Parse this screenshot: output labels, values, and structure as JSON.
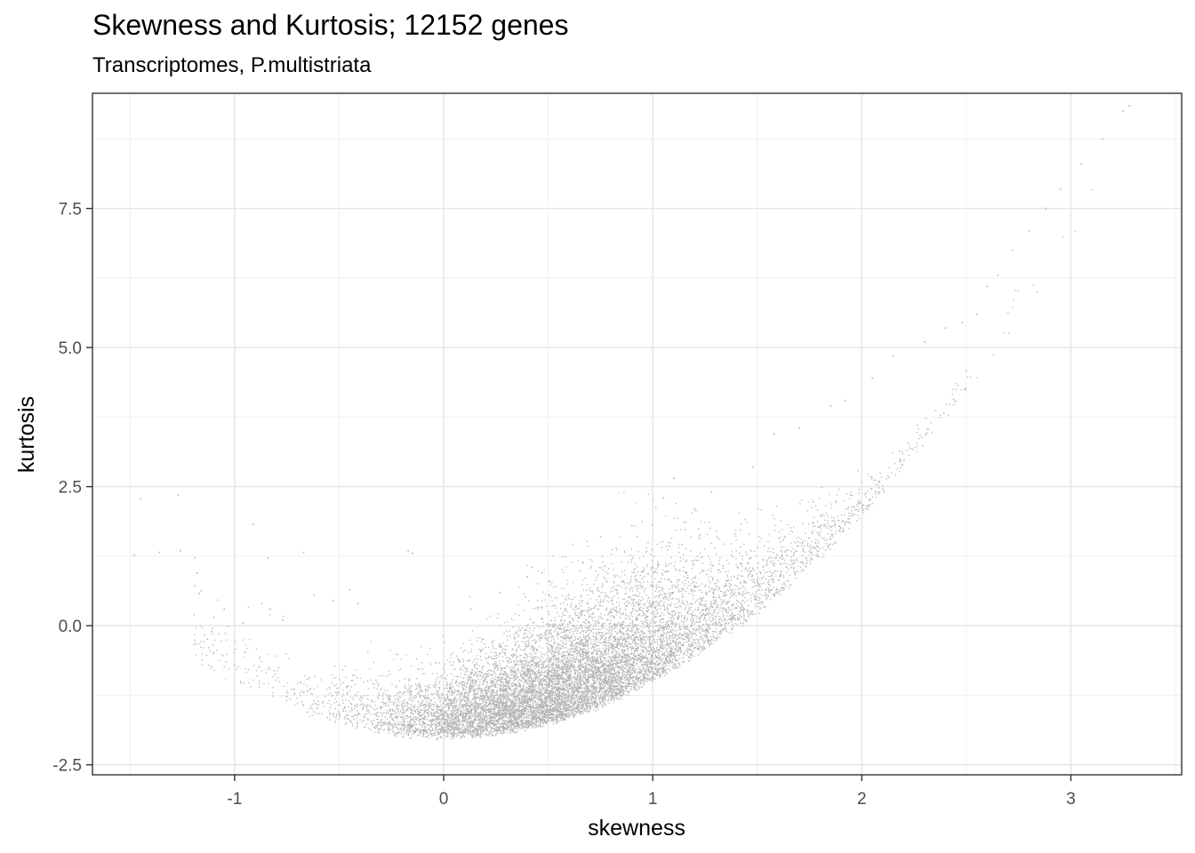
{
  "chart_data": {
    "type": "scatter",
    "title": "Skewness and Kurtosis; 12152 genes",
    "subtitle": "Transcriptomes, P.multistriata",
    "xlabel": "skewness",
    "ylabel": "kurtosis",
    "xlim": [
      -1.68,
      3.53
    ],
    "ylim": [
      -2.68,
      9.57
    ],
    "x_ticks": [
      -1,
      0,
      1,
      2,
      3
    ],
    "x_tick_labels": [
      "-1",
      "0",
      "1",
      "2",
      "3"
    ],
    "y_ticks": [
      -2.5,
      0,
      2.5,
      5,
      7.5
    ],
    "y_tick_labels": [
      "-2.5",
      "0.0",
      "2.5",
      "5.0",
      "7.5"
    ],
    "grid": true,
    "point_color": "#b3b3b3",
    "n_points": 12152,
    "series": [
      {
        "values": [
          [
            -1.48,
            1.27
          ],
          [
            -1.45,
            2.28
          ],
          [
            -1.36,
            1.32
          ],
          [
            -1.27,
            2.35
          ],
          [
            -1.26,
            1.35
          ],
          [
            -1.19,
            1.22
          ],
          [
            -1.18,
            0.95
          ],
          [
            -1.19,
            0.72
          ],
          [
            -1.17,
            0.58
          ],
          [
            -1.16,
            0.63
          ],
          [
            -1.1,
            0.15
          ],
          [
            -1.11,
            -0.1
          ],
          [
            -1.05,
            0.3
          ],
          [
            -0.96,
            0.05
          ],
          [
            -0.91,
            1.82
          ],
          [
            -0.87,
            0.4
          ],
          [
            -0.84,
            1.22
          ],
          [
            -0.83,
            0.3
          ],
          [
            -0.77,
            0.1
          ],
          [
            -0.67,
            1.32
          ],
          [
            -0.62,
            0.55
          ],
          [
            -0.53,
            0.45
          ],
          [
            -0.45,
            0.65
          ],
          [
            -0.41,
            0.4
          ],
          [
            -0.17,
            1.35
          ],
          [
            -0.15,
            1.3
          ],
          [
            0.13,
            0.3
          ],
          [
            0.27,
            0.6
          ],
          [
            0.4,
            0.88
          ],
          [
            0.42,
            1.05
          ],
          [
            0.47,
            0.95
          ],
          [
            0.75,
            1.6
          ],
          [
            0.9,
            1.8
          ],
          [
            1.05,
            2.3
          ],
          [
            1.1,
            2.65
          ],
          [
            1.2,
            2.1
          ],
          [
            1.28,
            2.4
          ],
          [
            1.35,
            0.05
          ],
          [
            1.48,
            2.85
          ],
          [
            1.58,
            3.45
          ],
          [
            1.7,
            3.55
          ],
          [
            1.85,
            3.95
          ],
          [
            1.92,
            4.05
          ],
          [
            2.05,
            4.45
          ],
          [
            2.15,
            4.85
          ],
          [
            2.3,
            5.1
          ],
          [
            2.4,
            5.35
          ],
          [
            2.48,
            5.45
          ],
          [
            2.55,
            5.6
          ],
          [
            2.6,
            6.1
          ],
          [
            2.65,
            6.3
          ],
          [
            2.72,
            6.75
          ],
          [
            2.8,
            7.1
          ],
          [
            2.88,
            7.5
          ],
          [
            2.95,
            7.85
          ],
          [
            3.05,
            8.3
          ],
          [
            3.15,
            8.75
          ],
          [
            3.25,
            9.25
          ],
          [
            3.28,
            9.35
          ]
        ]
      }
    ]
  }
}
